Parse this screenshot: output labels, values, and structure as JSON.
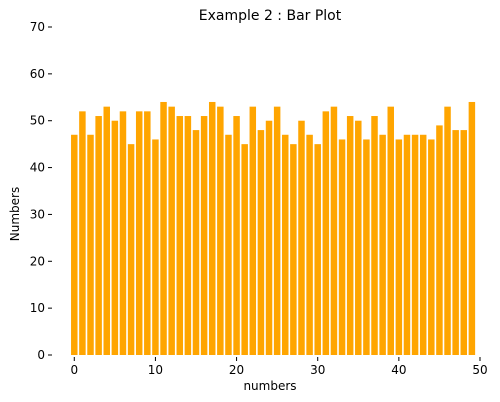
{
  "chart_data": {
    "type": "bar",
    "title": "Example 2 : Bar Plot",
    "xlabel": "numbers",
    "ylabel": "Numbers",
    "x": [
      0,
      1,
      2,
      3,
      4,
      5,
      6,
      7,
      8,
      9,
      10,
      11,
      12,
      13,
      14,
      15,
      16,
      17,
      18,
      19,
      20,
      21,
      22,
      23,
      24,
      25,
      26,
      27,
      28,
      29,
      30,
      31,
      32,
      33,
      34,
      35,
      36,
      37,
      38,
      39,
      40,
      41,
      42,
      43,
      44,
      45,
      46,
      47,
      48,
      49
    ],
    "values": [
      47,
      52,
      47,
      51,
      53,
      50,
      52,
      45,
      52,
      52,
      46,
      54,
      53,
      51,
      51,
      48,
      51,
      54,
      53,
      47,
      51,
      45,
      53,
      48,
      50,
      53,
      47,
      45,
      50,
      47,
      45,
      52,
      53,
      46,
      51,
      50,
      46,
      51,
      47,
      53,
      46,
      47,
      47,
      47,
      46,
      49,
      53,
      48,
      48,
      54
    ],
    "xlim": [
      -2.5,
      50
    ],
    "ylim": [
      0,
      70
    ],
    "xticks": [
      0,
      10,
      20,
      30,
      40,
      50
    ],
    "yticks": [
      0,
      10,
      20,
      30,
      40,
      50,
      60,
      70
    ],
    "bar_color": "#ffa500",
    "grid": false
  }
}
